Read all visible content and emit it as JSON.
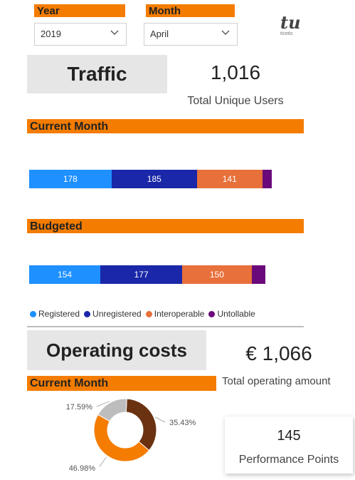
{
  "filters": {
    "year": {
      "label": "Year",
      "value": "2019"
    },
    "month": {
      "label": "Month",
      "value": "April"
    }
  },
  "logo": {
    "text": "tu",
    "subtext": "ticetic"
  },
  "traffic": {
    "title": "Traffic",
    "kpi": {
      "value": "1,016",
      "label": "Total Unique Users"
    },
    "current_month": {
      "label": "Current Month",
      "segments": [
        {
          "name": "Registered",
          "value": 178,
          "display": "178",
          "color": "#1E90FF"
        },
        {
          "name": "Unregistered",
          "value": 185,
          "display": "185",
          "color": "#1A27A8"
        },
        {
          "name": "Interoperable",
          "value": 141,
          "display": "141",
          "color": "#E8703A"
        },
        {
          "name": "Untollable",
          "value": 20,
          "display": "",
          "color": "#6A0A7A"
        }
      ]
    },
    "budgeted": {
      "label": "Budgeted",
      "segments": [
        {
          "name": "Registered",
          "value": 154,
          "display": "154",
          "color": "#1E90FF"
        },
        {
          "name": "Unregistered",
          "value": 177,
          "display": "177",
          "color": "#1A27A8"
        },
        {
          "name": "Interoperable",
          "value": 150,
          "display": "150",
          "color": "#E8703A"
        },
        {
          "name": "Untollable",
          "value": 30,
          "display": "",
          "color": "#6A0A7A"
        }
      ]
    },
    "legend": [
      {
        "name": "Registered",
        "color": "#1E90FF"
      },
      {
        "name": "Unregistered",
        "color": "#1A27A8"
      },
      {
        "name": "Interoperable",
        "color": "#E8703A"
      },
      {
        "name": "Untollable",
        "color": "#6A0A7A"
      }
    ]
  },
  "operating": {
    "title": "Operating costs",
    "kpi": {
      "value": "€ 1,066",
      "label": "Total operating amount"
    },
    "current_month_label": "Current Month",
    "donut": {
      "slices": [
        {
          "label": "35.43%",
          "value": 35.43,
          "color": "#6B3212"
        },
        {
          "label": "46.98%",
          "value": 46.98,
          "color": "#F47C00"
        },
        {
          "label": "17.59%",
          "value": 17.59,
          "color": "#BDBDBD"
        }
      ]
    },
    "performance": {
      "value": "145",
      "label": "Performance Points"
    }
  }
}
